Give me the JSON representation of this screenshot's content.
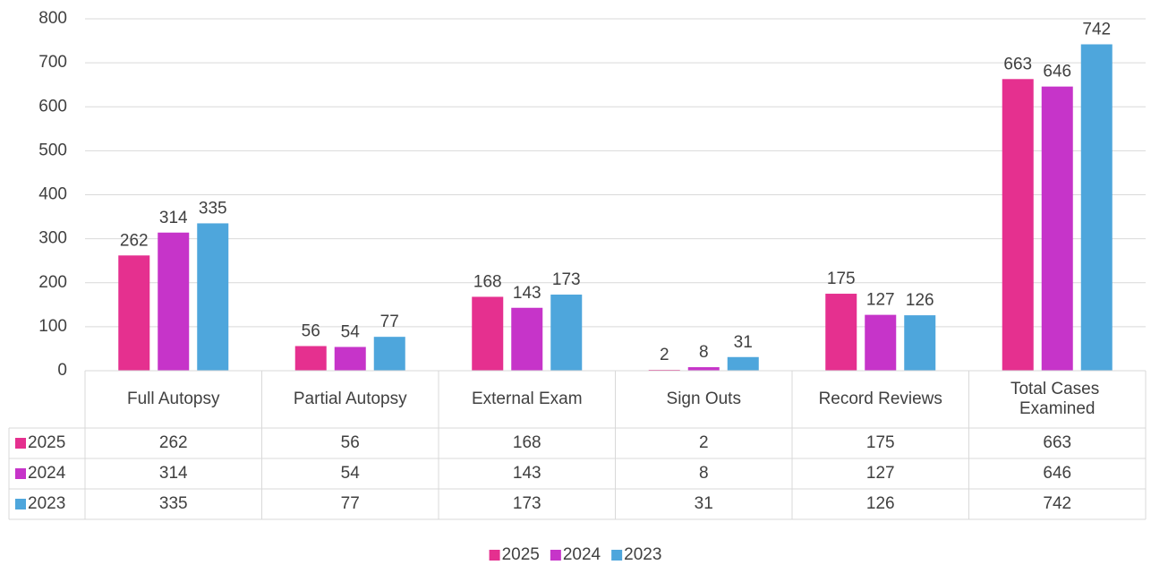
{
  "chart_data": {
    "type": "bar",
    "categories": [
      "Full Autopsy",
      "Partial Autopsy",
      "External Exam",
      "Sign Outs",
      "Record Reviews",
      "Total Cases Examined"
    ],
    "series": [
      {
        "name": "2025",
        "color": "#e5308f",
        "values": [
          262,
          56,
          168,
          2,
          175,
          663
        ]
      },
      {
        "name": "2024",
        "color": "#c634c9",
        "values": [
          314,
          54,
          143,
          8,
          127,
          646
        ]
      },
      {
        "name": "2023",
        "color": "#4ea6dc",
        "values": [
          335,
          77,
          173,
          31,
          126,
          742
        ]
      }
    ],
    "ylim": [
      0,
      800
    ],
    "yticks": [
      0,
      100,
      200,
      300,
      400,
      500,
      600,
      700,
      800
    ],
    "grid": true,
    "legend": "bottom"
  }
}
